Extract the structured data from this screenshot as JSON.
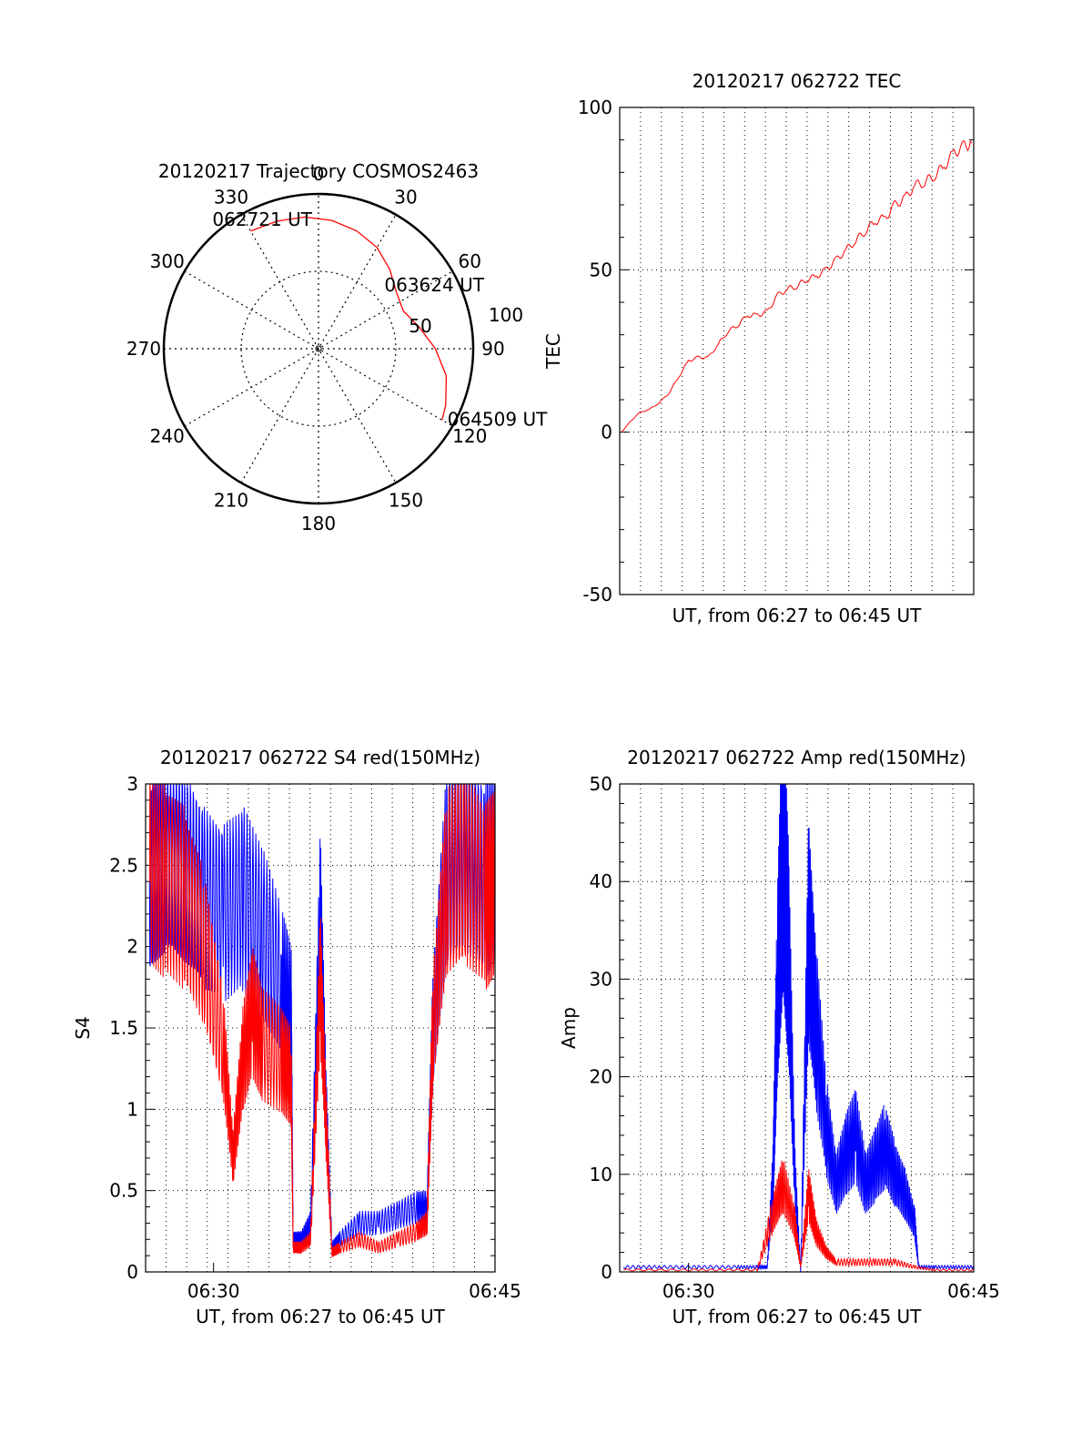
{
  "chart_data": [
    {
      "id": "trajectory",
      "type": "polar",
      "title": "20120217 Trajectory COSMOS2463",
      "angle_labels": [
        "0",
        "30",
        "60",
        "90",
        "120",
        "150",
        "180",
        "210",
        "240",
        "270",
        "300",
        "330"
      ],
      "radial_labels": [
        "50",
        "100"
      ],
      "track_azimuth_deg": [
        330,
        342,
        354,
        6,
        18,
        30,
        42,
        54,
        66,
        78,
        90,
        102,
        114,
        120
      ],
      "track_elevation_deg": [
        11,
        12,
        13,
        15,
        18,
        22,
        28,
        34,
        36,
        30,
        22,
        14,
        9,
        7
      ],
      "annotations": [
        {
          "text": "062721 UT",
          "az": 330,
          "el": 11
        },
        {
          "text": "063624 UT",
          "az": 52,
          "el": 36
        },
        {
          "text": "064509 UT",
          "az": 118,
          "el": 5
        }
      ],
      "color": "#ff0000"
    },
    {
      "id": "tec",
      "type": "line",
      "title": "20120217 062722 TEC",
      "ylabel": "TEC",
      "xlabel": "UT, from 06:27 to 06:45 UT",
      "ylim": [
        -50,
        100
      ],
      "yticks": [
        "100",
        "50",
        "0",
        "-50"
      ],
      "xlim_min": [
        0,
        18
      ],
      "series": [
        {
          "color": "#ff0000",
          "x": [
            0.1,
            0.5,
            1.0,
            1.5,
            2.0,
            2.5,
            3.0,
            3.5,
            4.0,
            4.5,
            5.0,
            5.5,
            6.0,
            6.5,
            7.0,
            7.5,
            8.0,
            8.5,
            9.0,
            9.5,
            10.0,
            10.5,
            11.0,
            11.5,
            12.0,
            12.5,
            13.0,
            13.5,
            14.0,
            14.5,
            15.0,
            15.5,
            16.0,
            16.5,
            17.0,
            17.5,
            17.9
          ],
          "y": [
            0,
            3,
            6,
            7,
            9,
            12,
            17,
            22,
            23,
            23,
            27,
            31,
            33,
            36,
            36,
            37,
            42,
            44,
            45,
            47,
            48,
            50,
            53,
            56,
            59,
            62,
            65,
            66,
            70,
            72,
            76,
            77,
            79,
            82,
            86,
            88,
            89
          ]
        }
      ]
    },
    {
      "id": "s4",
      "type": "line",
      "title": "20120217 062722 S4 red(150MHz)",
      "ylabel": "S4",
      "xlabel": "UT, from 06:27 to 06:45 UT",
      "ylim": [
        0,
        3
      ],
      "yticks": [
        "3",
        "2.5",
        "2",
        "1.5",
        "1",
        "0.5",
        "0"
      ],
      "xtick_labels": [
        "06:30",
        "06:45"
      ],
      "xtick_positions_min": [
        3.5,
        18
      ],
      "xlim_min": [
        0,
        18
      ],
      "series": [
        {
          "color": "#0000ff",
          "x": [
            0.2,
            1.0,
            2.0,
            3.0,
            4.0,
            5.0,
            6.0,
            7.0,
            7.5,
            7.6,
            8.0,
            8.5,
            9.0,
            9.3,
            9.6,
            10.0,
            11.0,
            12.0,
            13.0,
            14.0,
            14.5,
            14.8,
            15.5,
            16.5,
            17.5,
            18.0
          ],
          "y": [
            2.4,
            2.6,
            2.5,
            2.3,
            2.2,
            2.3,
            2.1,
            1.8,
            1.6,
            0.2,
            0.2,
            0.3,
            2.2,
            1.0,
            0.15,
            0.2,
            0.3,
            0.3,
            0.35,
            0.4,
            0.4,
            1.5,
            2.5,
            2.6,
            2.4,
            2.5
          ]
        },
        {
          "color": "#ff0000",
          "x": [
            0.2,
            1.0,
            2.0,
            3.0,
            4.0,
            4.5,
            5.0,
            5.5,
            6.0,
            7.0,
            7.5,
            7.6,
            8.0,
            8.5,
            9.0,
            9.3,
            9.6,
            10.0,
            11.0,
            12.0,
            13.0,
            14.0,
            14.5,
            14.8,
            15.5,
            16.5,
            17.5,
            18.0
          ],
          "y": [
            2.5,
            2.4,
            2.3,
            2.0,
            1.4,
            0.7,
            1.3,
            1.6,
            1.4,
            1.3,
            1.2,
            0.15,
            0.15,
            0.2,
            1.8,
            0.9,
            0.12,
            0.15,
            0.2,
            0.15,
            0.2,
            0.25,
            0.3,
            1.5,
            2.4,
            2.5,
            2.3,
            2.4
          ]
        }
      ]
    },
    {
      "id": "amp",
      "type": "line",
      "title": "20120217 062722 Amp red(150MHz)",
      "ylabel": "Amp",
      "xlabel": "UT, from 06:27 to 06:45 UT",
      "ylim": [
        0,
        50
      ],
      "yticks": [
        "50",
        "40",
        "30",
        "20",
        "10",
        "0"
      ],
      "xtick_labels": [
        "06:30",
        "06:45"
      ],
      "xtick_positions_min": [
        3.5,
        18
      ],
      "xlim_min": [
        0,
        18
      ],
      "series": [
        {
          "color": "#0000ff",
          "x": [
            0.2,
            2.0,
            4.0,
            6.0,
            7.0,
            7.5,
            7.8,
            8.0,
            8.3,
            8.6,
            8.9,
            9.2,
            9.6,
            10.0,
            10.5,
            11.0,
            11.5,
            12.0,
            12.5,
            13.0,
            13.5,
            14.0,
            14.5,
            15.0,
            15.2,
            16.0,
            17.0,
            18.0
          ],
          "y": [
            0.5,
            0.5,
            0.5,
            0.5,
            0.5,
            0.5,
            10,
            28,
            44,
            32,
            10,
            0,
            35,
            25,
            15,
            9,
            12,
            14,
            9,
            11,
            13,
            10,
            8,
            5,
            0.5,
            0.5,
            0.5,
            0.5
          ]
        },
        {
          "color": "#ff0000",
          "x": [
            0.2,
            4.0,
            7.0,
            7.8,
            8.3,
            8.9,
            9.2,
            9.6,
            10.0,
            10.5,
            11.0,
            12.0,
            13.0,
            14.0,
            15.0,
            16.0,
            18.0
          ],
          "y": [
            0.2,
            0.2,
            0.2,
            6,
            9,
            5,
            0.5,
            8,
            4,
            2,
            1,
            1,
            1,
            1,
            0.5,
            0.2,
            0.2
          ]
        }
      ]
    }
  ]
}
